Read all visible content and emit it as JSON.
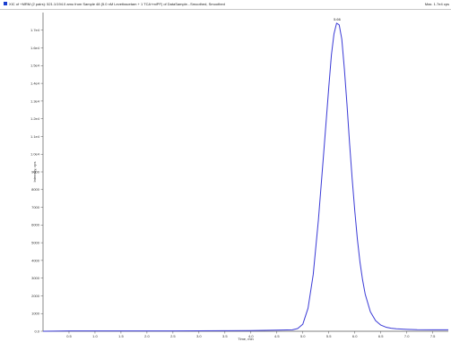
{
  "window": {
    "title": "XIC of +MRM (2 pairs): 521.1/194.0 amu from Sample 48 (5.0 nM Levetiracetam + 1 TCA+miPF) of DataSample...Smoothed, Smoothed",
    "right_info": "Max. 1.7e4 cps"
  },
  "colors": {
    "trace": "#3a3ad6",
    "axis": "#555555",
    "marker": "#1a3fd0"
  },
  "chart_data": {
    "type": "line",
    "title": "",
    "xlabel": "Time, min",
    "ylabel": "Intensity, cps",
    "xlim": [
      0,
      7.8
    ],
    "ylim": [
      0,
      18000
    ],
    "x_ticks": [
      "0.5",
      "1.0",
      "1.5",
      "2.0",
      "2.5",
      "3.0",
      "3.5",
      "4.0",
      "4.5",
      "5.0",
      "5.5",
      "6.0",
      "6.5",
      "7.0",
      "7.5"
    ],
    "x_tick_values": [
      0.5,
      1.0,
      1.5,
      2.0,
      2.5,
      3.0,
      3.5,
      4.0,
      4.5,
      5.0,
      5.5,
      6.0,
      6.5,
      7.0,
      7.5
    ],
    "y_ticks": [
      "0.0",
      "1000",
      "2000",
      "3000",
      "4000",
      "5000",
      "6000",
      "7000",
      "8000",
      "9000",
      "1.0e4",
      "1.1e4",
      "1.2e4",
      "1.3e4",
      "1.4e4",
      "1.5e4",
      "1.6e4",
      "1.7e4"
    ],
    "y_tick_values": [
      0,
      1000,
      2000,
      3000,
      4000,
      5000,
      6000,
      7000,
      8000,
      9000,
      10000,
      11000,
      12000,
      13000,
      14000,
      15000,
      16000,
      17000
    ],
    "series": [
      {
        "x": [
          0.0,
          0.5,
          1.0,
          1.5,
          2.0,
          2.5,
          3.0,
          3.5,
          4.0,
          4.5,
          4.8,
          4.9,
          5.0,
          5.1,
          5.2,
          5.3,
          5.4,
          5.5,
          5.55,
          5.6,
          5.65,
          5.7,
          5.75,
          5.8,
          5.85,
          5.9,
          5.95,
          6.0,
          6.05,
          6.1,
          6.15,
          6.2,
          6.3,
          6.4,
          6.5,
          6.6,
          6.7,
          6.8,
          7.0,
          7.2,
          7.5,
          7.8
        ],
        "y": [
          0,
          20,
          20,
          20,
          20,
          20,
          25,
          30,
          40,
          60,
          80,
          150,
          400,
          1300,
          3200,
          6300,
          10000,
          13800,
          15600,
          16800,
          17400,
          17300,
          16500,
          14800,
          12800,
          10600,
          8600,
          6800,
          5200,
          3900,
          2900,
          2100,
          1100,
          600,
          350,
          230,
          170,
          140,
          110,
          90,
          80,
          80
        ]
      }
    ],
    "annotations": [
      {
        "text": "5.66",
        "x": 5.66,
        "y": 17450
      }
    ]
  }
}
